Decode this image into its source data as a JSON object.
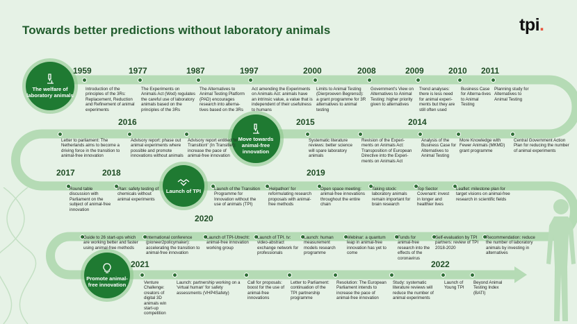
{
  "header": {
    "title": "Towards better predictions without laboratory animals",
    "logo_text": "tpi",
    "logo_dot": "."
  },
  "colors": {
    "background": "#e6f2e6",
    "path": "#b5dbb5",
    "circle": "#1f7a32",
    "marker": "#2e6e36",
    "accent": "#e8573f"
  },
  "icons": {
    "welfare": "microscope-icon",
    "move": "microscope-icon",
    "launch": "handshake-icon",
    "promote": "lightbulb-icon"
  },
  "milestones": {
    "welfare": "The welfare of laboratory animals",
    "move": "Move towards animal-free innovation",
    "launch": "Launch of TPI",
    "promote": "Promote animal-free innovation"
  },
  "years": {
    "y1959": "1959",
    "y1977": "1977",
    "y1987": "1987",
    "y1997": "1997",
    "y2000": "2000",
    "y2008": "2008",
    "y2009": "2009",
    "y2010": "2010",
    "y2011": "2011",
    "y2016": "2016",
    "y2015": "2015",
    "y2014": "2014",
    "y2017": "2017",
    "y2018": "2018",
    "y2019": "2019",
    "y2020": "2020",
    "y2021": "2021",
    "y2022": "2022"
  },
  "events": {
    "e1959": "Introduction of the principles of the 3Rs: Replacement, Reduction and Refinement of animal experiments",
    "e1977": "The Experiments on Animals Act (Wod) regulates the careful use of laboratory animals based on the principles of the 3Rs",
    "e1987": "The Alternatives to Animal Testing Platform (PAD) encourages research into alterna-tives based on the 3Rs",
    "e1997": "Act amending the Experiments on Animals Act: animals have an intrinsic value, a value that is independent of their usefulness to humans",
    "e2000": "Limits to Animal Testing (Dierproeven Begrensd): a grant programme for 3R alternatives to animal testing",
    "e2008": "Government's View on Alternatives to Animal Testing: higher priority given to alternatives",
    "e2009": "Trend analyses: there is less need for animal experi-ments but they are still often used",
    "e2010": "Business Case for Alterna-tives to Animal Testing",
    "e2011": "Planning study for Alternatives to Animal Testing",
    "r2_letter": "Letter to parliament: The Netherlands aims to become a driving force in the transition to animal-free innovation",
    "r2_advisory1": "Advisory report: phase out animal experiments where possible and promote innovations without animals",
    "r2_advisory2": "Advisory report entitled 'In Transition!' (In Transitie!): increase the pace of animal-free innovation",
    "r2_systematic": "Systematic literature reviews: better science will spare laboratory animals",
    "r2_revision": "Revision of the Experi-ments on Animals Act: Transposition of European Directive into the Experi-ments on Animals Act",
    "r2_analysis": "Analysis of the Business Case for Alternatives to Animal Testing",
    "r2_knowledge": "More Knowledge with Fewer Animals (MKMD) grant programme",
    "r2_central": "Central Government Action Plan for reducing the number of animal experiments",
    "r3_roundtable": "Round table discussion with Parliament on the subject of animal-free innovation",
    "r3_plan": "Plan: safety testing of chemicals without animal experiments",
    "r3_launch": "Launch of the Transition Programme for Innovation without the use of animals (TPI)",
    "r3_helpathon": "'Helpathon' for reformulating research proposals with animal-free methods",
    "r3_openspace": "Open space meeting: animal-free innovations throughout the entire chain",
    "r3_takingstock": "Taking stock: laboratory animals remain important for brain research",
    "r3_covenant": "Top Sector Covenant: invest in longer and healthier lives",
    "r3_leaflet": "Leaflet: milestone plan for target visions on animal-free research in scientific fields",
    "r4_guide": "Guide to 26 start-ups which are working better and faster using animal-free methods",
    "r4_conference": "International conference (pioneer2policymaker): accelerating the transition to animal-free innovation",
    "r4_utrecht": "Launch of TPI-Utrecht: animal-free innovation working group",
    "r4_tpitv": "Launch of TPI. tv: video-abstract exchange network for professionals",
    "r4_human": "Launch: human measurement models research programme",
    "r4_webinar": "Webinar: a quantum leap in animal-free innovation has yet to come",
    "r4_funds": "Funds for animal-free research into the effects of the coronavirus",
    "r4_selfeval": "Self-evaluation by TPI partners: review of TPI 2018-2020",
    "r4_recommend": "Recommendation: reduce the number of laboratory animals by investing in alternatives",
    "r5_venture": "Venture Challenge: creators of digital 3D animals win start-up competition",
    "r5_partnership": "Launch: partnership working on a 'virtual human' for safety assessments (VHP4Safety)",
    "r5_call": "Call for proposals: boost for the use of animal-free innovations",
    "r5_letter": "Letter to Parliament: continuation of the TPI partnership programme",
    "r5_resolution": "Resolution: The European Parliament intends to increase the pace of animal-free innovation",
    "r5_study": "Study: systematic literature reviews will reduce the number of animal experiments",
    "r5_young": "Launch of Young TPI",
    "r5_beyond": "Beyond Animal Testing Index (BATI)"
  }
}
